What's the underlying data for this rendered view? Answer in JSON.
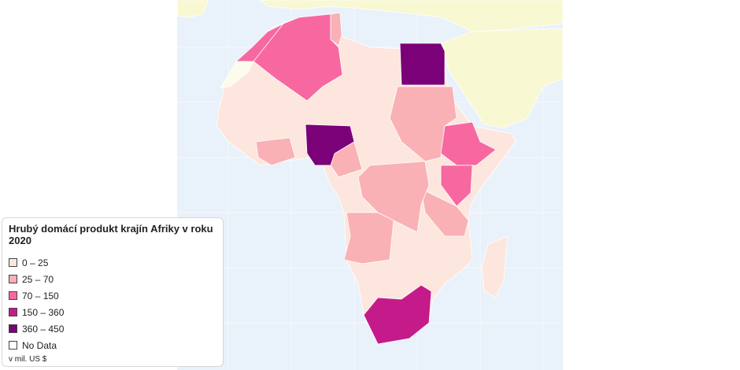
{
  "legend": {
    "title": "Hrubý domácí produkt krajín Afriky v roku 2020",
    "items": [
      {
        "label": "0 – 25",
        "color": "#fde6de"
      },
      {
        "label": "25 – 70",
        "color": "#f9b1b6"
      },
      {
        "label": "70 – 150",
        "color": "#f768a1"
      },
      {
        "label": "150 – 360",
        "color": "#c51b8a"
      },
      {
        "label": "360 – 450",
        "color": "#7a0177"
      },
      {
        "label": "No Data",
        "color": "#ffffff"
      }
    ],
    "note": "v mil. US $"
  }
}
